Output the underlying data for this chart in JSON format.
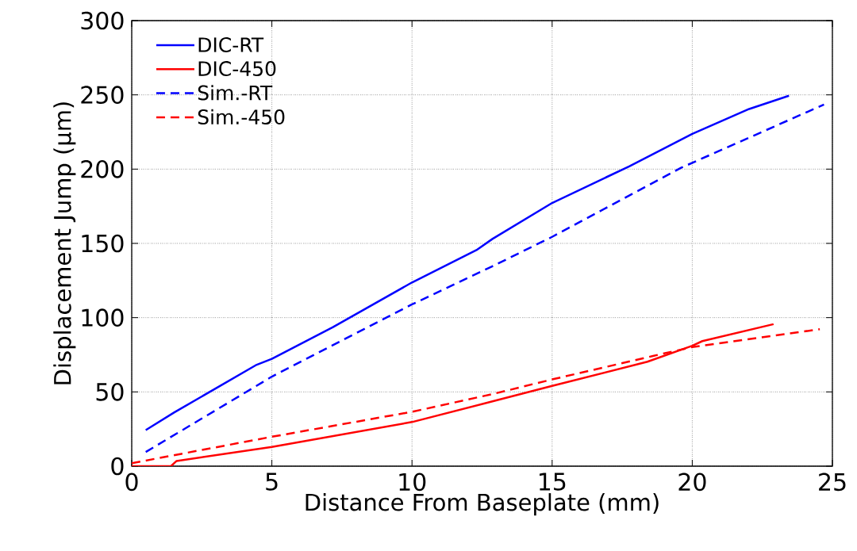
{
  "chart_data": {
    "type": "line",
    "xlabel": "Distance From Baseplate (mm)",
    "ylabel": "Displacement Jump (μm)",
    "xlim": [
      0,
      25
    ],
    "ylim": [
      0,
      300
    ],
    "xticks": [
      0,
      5,
      10,
      15,
      20,
      25
    ],
    "yticks": [
      0,
      50,
      100,
      150,
      200,
      250,
      300
    ],
    "grid": true,
    "legend": "top left",
    "marker": "none",
    "series": [
      {
        "name": "DIC-RT",
        "color": "#0000ff",
        "line_style": "solid",
        "x": [
          0.5,
          1.52,
          3.0,
          4.46,
          5.0,
          7.18,
          10,
          12.3,
          12.87,
          15,
          17.75,
          20,
          22.03,
          23.45
        ],
        "values": [
          24.3,
          36.2,
          52.4,
          68.3,
          72.3,
          93.6,
          123.7,
          145.5,
          153,
          177.2,
          201.9,
          223.7,
          240.5,
          249.4
        ]
      },
      {
        "name": "DIC-450",
        "color": "#ff0000",
        "line_style": "solid",
        "x": [
          0,
          1.4,
          1.6,
          5,
          10,
          12.87,
          15,
          18.4,
          20,
          20.36,
          22.9
        ],
        "values": [
          0,
          0,
          3.5,
          12.9,
          29.7,
          43.6,
          54,
          70.3,
          81.1,
          84.2,
          95.6
        ]
      },
      {
        "name": "Sim.-RT",
        "color": "#0000ff",
        "line_style": "dashed",
        "x": [
          0.5,
          5,
          10,
          12.87,
          15,
          19.6,
          24.7
        ],
        "values": [
          9.5,
          60.3,
          108.9,
          134.6,
          154.4,
          200.9,
          243.5
        ]
      },
      {
        "name": "Sim.-450",
        "color": "#ff0000",
        "line_style": "dashed",
        "x": [
          0,
          5,
          10,
          12.87,
          15,
          18.6,
          20,
          24.55
        ],
        "values": [
          2,
          19.8,
          36.6,
          48.5,
          58.4,
          74.2,
          80.2,
          92.2
        ]
      }
    ]
  }
}
